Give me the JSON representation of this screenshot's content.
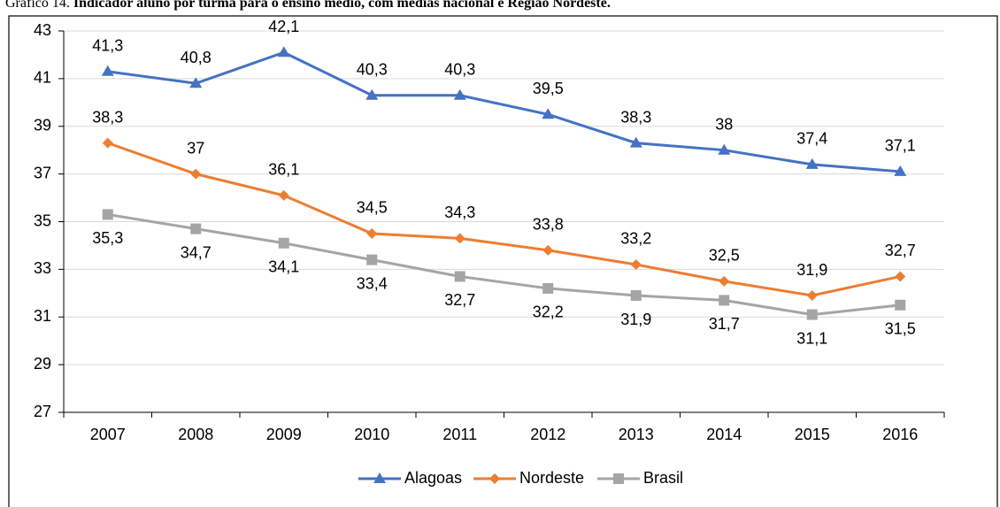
{
  "chart_data": {
    "type": "line",
    "title_label": "Gráfico 14.",
    "title": "Indicador aluno por turma para o ensino médio, com médias nacional e Região Nordeste.",
    "categories": [
      "2007",
      "2008",
      "2009",
      "2010",
      "2011",
      "2012",
      "2013",
      "2014",
      "2015",
      "2016"
    ],
    "series": [
      {
        "name": "Alagoas",
        "color": "#4472c4",
        "marker": "triangle",
        "label_position": "above",
        "values": [
          41.3,
          40.8,
          42.1,
          40.3,
          40.3,
          39.5,
          38.3,
          38,
          37.4,
          37.1
        ],
        "value_labels": [
          "41,3",
          "40,8",
          "42,1",
          "40,3",
          "40,3",
          "39,5",
          "38,3",
          "38",
          "37,4",
          "37,1"
        ]
      },
      {
        "name": "Nordeste",
        "color": "#ed7d31",
        "marker": "diamond",
        "label_position": "above",
        "values": [
          38.3,
          37,
          36.1,
          34.5,
          34.3,
          33.8,
          33.2,
          32.5,
          31.9,
          32.7
        ],
        "value_labels": [
          "38,3",
          "37",
          "36,1",
          "34,5",
          "34,3",
          "33,8",
          "33,2",
          "32,5",
          "31,9",
          "32,7"
        ]
      },
      {
        "name": "Brasil",
        "color": "#a5a5a5",
        "marker": "square",
        "label_position": "below",
        "values": [
          35.3,
          34.7,
          34.1,
          33.4,
          32.7,
          32.2,
          31.9,
          31.7,
          31.1,
          31.5
        ],
        "value_labels": [
          "35,3",
          "34,7",
          "34,1",
          "33,4",
          "32,7",
          "32,2",
          "31,9",
          "31,7",
          "31,1",
          "31,5"
        ]
      }
    ],
    "ylim": [
      27,
      43
    ],
    "yticks": [
      27,
      29,
      31,
      33,
      35,
      37,
      39,
      41,
      43
    ],
    "grid": true,
    "legend": "bottom"
  }
}
